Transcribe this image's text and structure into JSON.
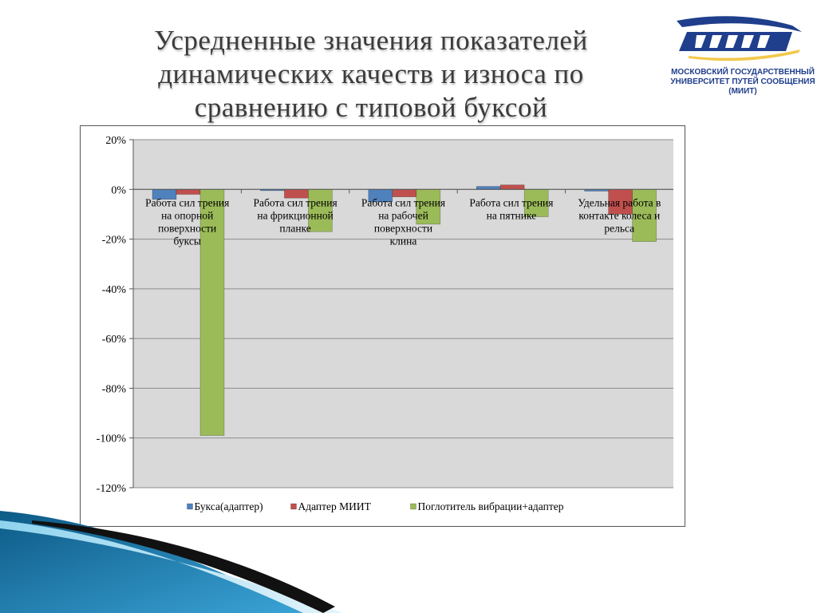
{
  "slide": {
    "title_lines": [
      "Усредненные значения показателей",
      "динамических качеств и износа по",
      "сравнению с типовой буксой"
    ]
  },
  "logo": {
    "lines": [
      "МОСКОВСКИЙ ГОСУДАРСТВЕННЫЙ",
      "УНИВЕРСИТЕТ ПУТЕЙ СООБЩЕНИЯ",
      "(МИИТ)"
    ],
    "colors": {
      "blue": "#1f3e8c",
      "accent": "#f2c94c"
    }
  },
  "chart_data": {
    "type": "bar",
    "title": "",
    "xlabel": "",
    "ylabel": "",
    "ylim": [
      -120,
      20
    ],
    "yticks": [
      20,
      0,
      -20,
      -40,
      -60,
      -80,
      -100,
      -120
    ],
    "ytick_labels": [
      "20%",
      "0%",
      "-20%",
      "-40%",
      "-60%",
      "-80%",
      "-100%",
      "-120%"
    ],
    "grid": true,
    "legend_position": "bottom",
    "categories": [
      "Работа сил трения на опорной поверхности буксы",
      "Работа сил трения на фрикционной планке",
      "Работа сил трения на рабочей поверхности клина",
      "Работа сил трения на пятнике",
      "Удельная работа в контакте колеса и рельса"
    ],
    "category_label_lines": [
      [
        "Работа сил трения",
        "на опорной",
        "поверхности",
        "буксы"
      ],
      [
        "Работа сил трения",
        "на фрикционной",
        "планке"
      ],
      [
        "Работа сил трения",
        "на рабочей",
        "поверхности",
        "клина"
      ],
      [
        "Работа сил трения",
        "на пятнике"
      ],
      [
        "Удельная работа в",
        "контакте колеса и",
        "рельса"
      ]
    ],
    "series": [
      {
        "name": "Букса(адаптер)",
        "color": "#4f81bd",
        "values": [
          -4,
          -0.5,
          -5,
          1.2,
          -0.7
        ]
      },
      {
        "name": "Адаптер МИИТ",
        "color": "#c0504d",
        "values": [
          -2,
          -3.5,
          -3,
          1.8,
          -10
        ]
      },
      {
        "name": "Поглотитель вибрации+адаптер",
        "color": "#9bbb59",
        "values": [
          -99,
          -17,
          -14,
          -11,
          -21
        ]
      }
    ]
  }
}
